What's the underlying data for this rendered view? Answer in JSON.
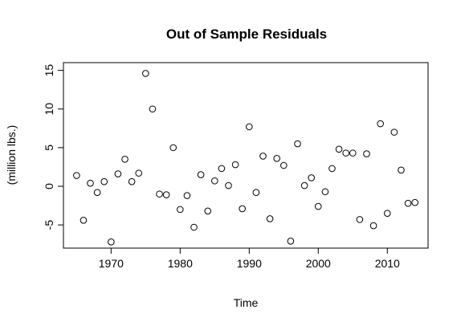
{
  "chart_data": {
    "type": "scatter",
    "title": "Out of Sample Residuals",
    "xlabel": "Time",
    "ylabel": "(million lbs.)",
    "xlim": [
      1963.1,
      2015.9
    ],
    "ylim": [
      -8.0,
      16.0
    ],
    "xticks": [
      1970,
      1980,
      1990,
      2000,
      2010
    ],
    "yticks": [
      -5,
      0,
      5,
      10,
      15
    ],
    "grid": false,
    "marker": "open-circle",
    "x": [
      1965,
      1966,
      1967,
      1968,
      1969,
      1970,
      1971,
      1972,
      1973,
      1974,
      1975,
      1976,
      1977,
      1978,
      1979,
      1980,
      1981,
      1982,
      1983,
      1984,
      1985,
      1986,
      1987,
      1988,
      1989,
      1990,
      1991,
      1992,
      1993,
      1994,
      1995,
      1996,
      1997,
      1998,
      1999,
      2000,
      2001,
      2002,
      2003,
      2004,
      2005,
      2006,
      2007,
      2008,
      2009,
      2010,
      2011,
      2012,
      2013,
      2014
    ],
    "y": [
      1.4,
      -4.4,
      0.4,
      -0.8,
      0.6,
      -7.2,
      1.6,
      3.5,
      0.6,
      1.7,
      14.6,
      10.0,
      -1.0,
      -1.1,
      5.0,
      -3.0,
      -1.2,
      -5.3,
      1.5,
      -3.2,
      0.7,
      2.3,
      0.1,
      2.8,
      -2.9,
      7.7,
      -0.8,
      3.9,
      -4.2,
      3.6,
      2.7,
      -7.1,
      5.5,
      0.1,
      1.1,
      -2.6,
      -0.7,
      2.3,
      4.8,
      4.3,
      4.3,
      -4.3,
      4.2,
      -5.1,
      8.1,
      -3.5,
      7.0,
      2.1,
      -2.2,
      -2.1
    ]
  }
}
